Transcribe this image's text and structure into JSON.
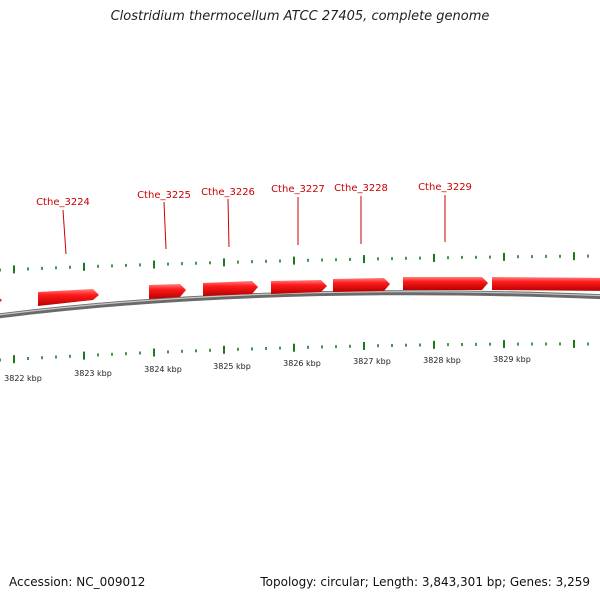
{
  "title": "Clostridium thermocellum ATCC 27405, complete genome",
  "footer": {
    "accession": "Accession: NC_009012",
    "summary": "Topology: circular; Length: 3,843,301 bp; Genes: 3,259"
  },
  "colors": {
    "gene": "#ee0000",
    "gene_label": "#cc0000",
    "tick": "#1a7a1a",
    "backbone": "#777777",
    "text": "#222222"
  },
  "gene_labels": [
    "Cthe_3224",
    "Cthe_3225",
    "Cthe_3226",
    "Cthe_3227",
    "Cthe_3228",
    "Cthe_3229"
  ],
  "scale_labels": [
    "3822 kbp",
    "3823 kbp",
    "3824 kbp",
    "3825 kbp",
    "3826 kbp",
    "3827 kbp",
    "3828 kbp",
    "3829 kbp"
  ]
}
